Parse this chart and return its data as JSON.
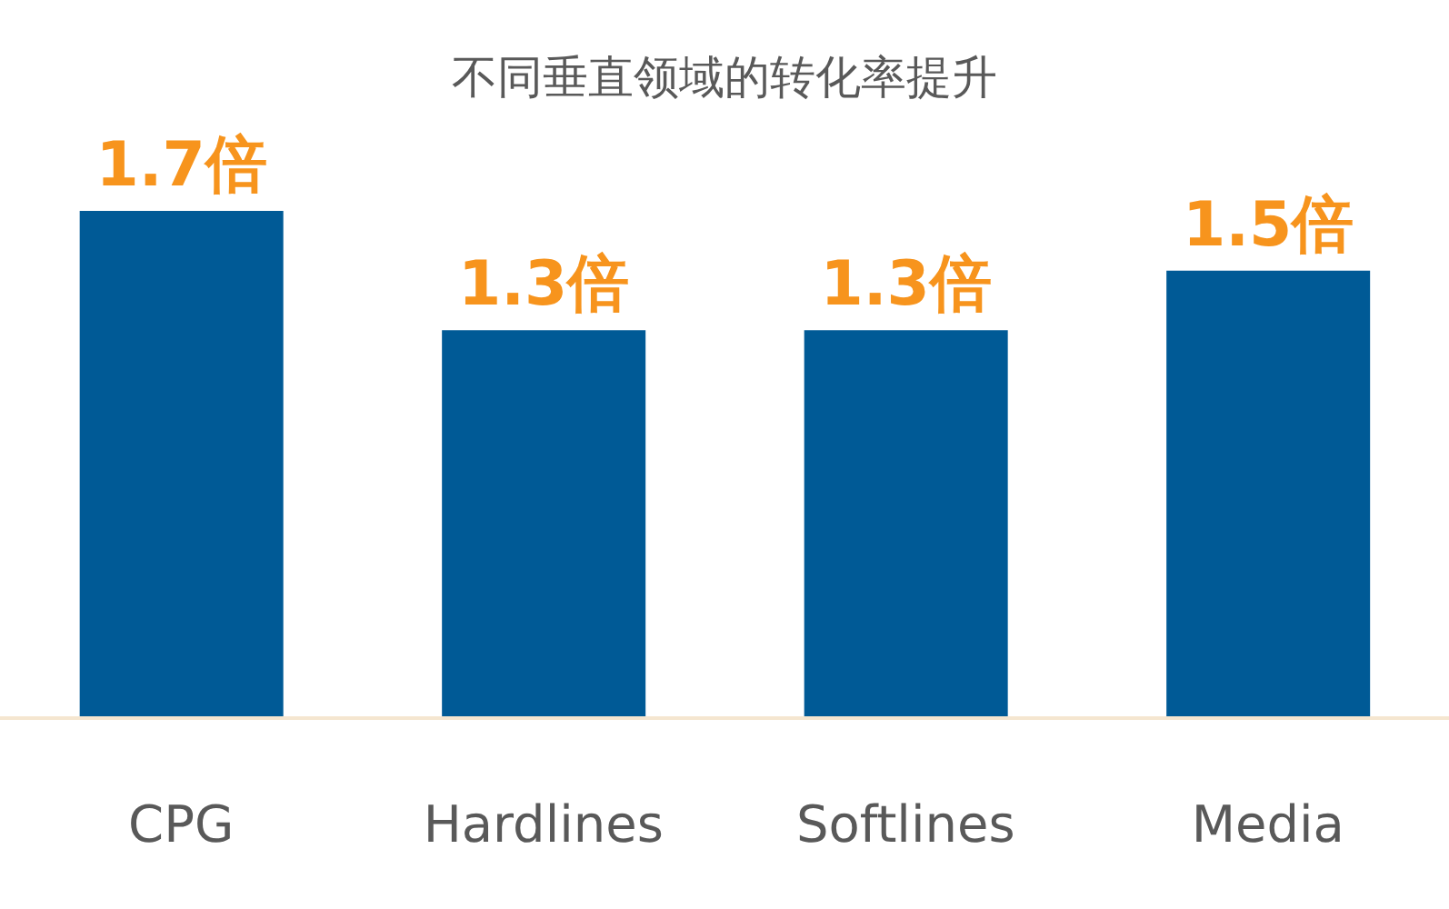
{
  "chart_data": {
    "type": "bar",
    "title": "不同垂直领域的转化率提升",
    "categories": [
      "CPG",
      "Hardlines",
      "Softlines",
      "Media"
    ],
    "values": [
      1.7,
      1.3,
      1.3,
      1.5
    ],
    "value_labels": [
      "1.7倍",
      "1.3倍",
      "1.3倍",
      "1.5倍"
    ],
    "color": "#005a96",
    "tick_labels": "x"
  }
}
